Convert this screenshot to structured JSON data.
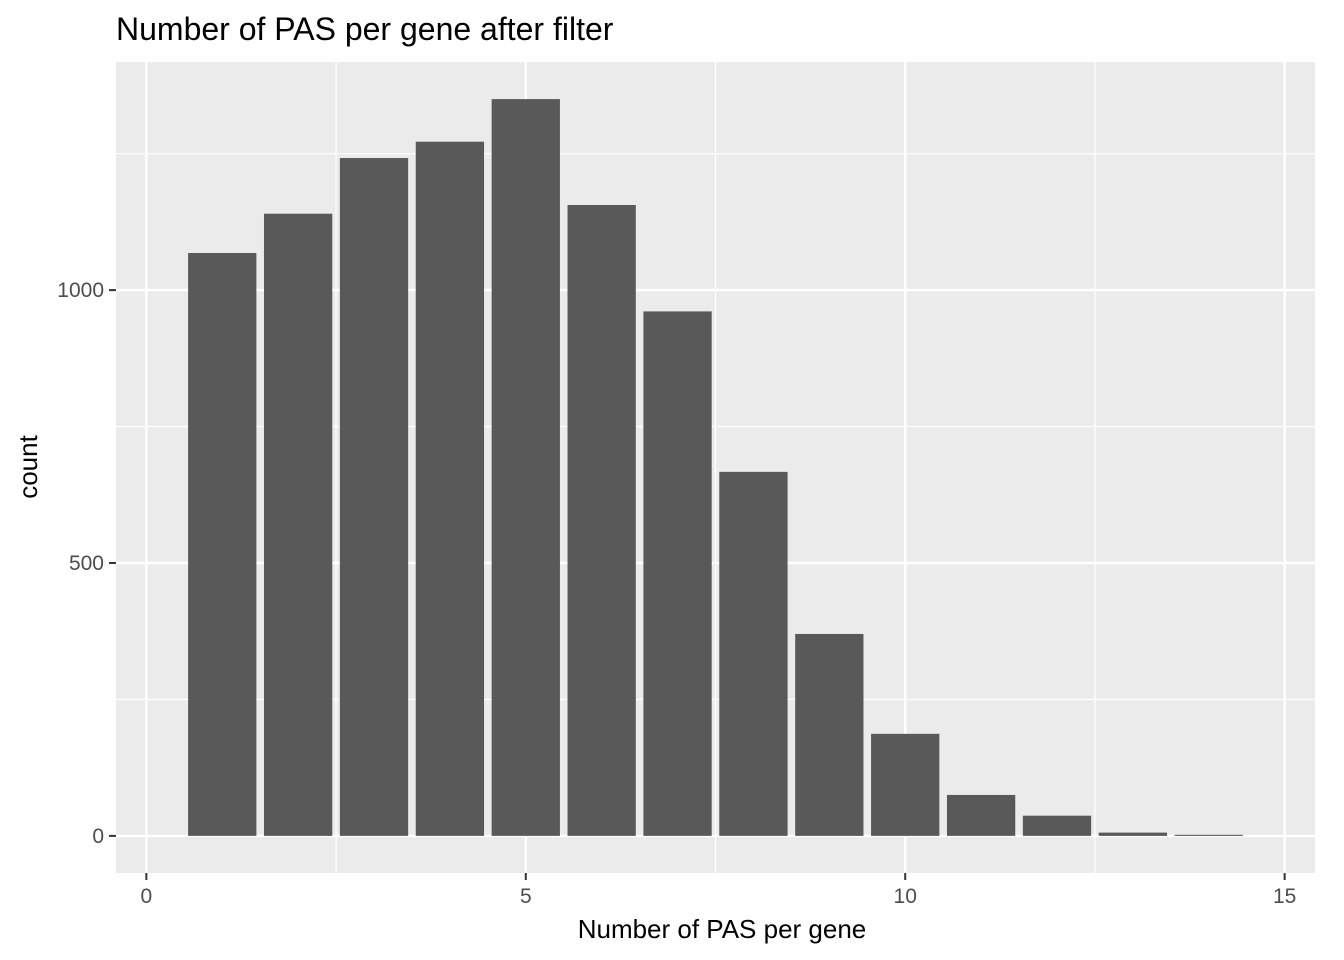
{
  "chart_data": {
    "type": "bar",
    "title": "Number of PAS per gene after filter",
    "xlabel": "Number of PAS per gene",
    "ylabel": "count",
    "x": [
      1,
      2,
      3,
      4,
      5,
      6,
      7,
      8,
      9,
      10,
      11,
      12,
      13,
      14
    ],
    "values": [
      1068,
      1140,
      1242,
      1272,
      1350,
      1156,
      961,
      667,
      370,
      187,
      75,
      37,
      6,
      2
    ],
    "xlim": [
      -0.4,
      15.4
    ],
    "ylim": [
      -68,
      1418
    ],
    "xticks": [
      0,
      5,
      10,
      15
    ],
    "xtick_labels": [
      "0",
      "5",
      "10",
      "15"
    ],
    "yticks": [
      0,
      500,
      1000
    ],
    "ytick_labels": [
      "0",
      "500",
      "1000"
    ],
    "grid": true,
    "colors": {
      "panel": "#EBEBEB",
      "grid": "#FFFFFF",
      "bar": "#595959",
      "tick": "#333333"
    }
  }
}
